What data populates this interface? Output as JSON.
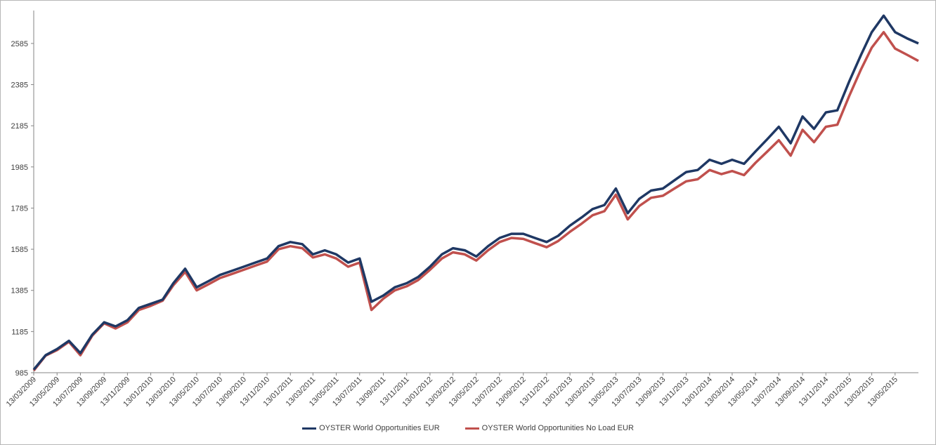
{
  "chart_data": {
    "type": "line",
    "title": "",
    "xlabel": "",
    "ylabel": "",
    "ylim": [
      985,
      2745
    ],
    "y_ticks": [
      985,
      1185,
      1385,
      1585,
      1785,
      1985,
      2185,
      2385,
      2585
    ],
    "x_ticks": [
      "13/03/2009",
      "13/05/2009",
      "13/07/2009",
      "13/09/2009",
      "13/11/2009",
      "13/01/2010",
      "13/03/2010",
      "13/05/2010",
      "13/07/2010",
      "13/09/2010",
      "13/11/2010",
      "13/01/2011",
      "13/03/2011",
      "13/05/2011",
      "13/07/2011",
      "13/09/2011",
      "13/11/2011",
      "13/01/2012",
      "13/03/2012",
      "13/05/2012",
      "13/07/2012",
      "13/09/2012",
      "13/11/2012",
      "13/01/2013",
      "13/03/2013",
      "13/05/2013",
      "13/07/2013",
      "13/09/2013",
      "13/11/2013",
      "13/01/2014",
      "13/03/2014",
      "13/05/2014",
      "13/07/2014",
      "13/09/2014",
      "13/11/2014",
      "13/01/2015",
      "13/03/2015",
      "13/05/2015"
    ],
    "legend_position": "bottom",
    "grid": false,
    "series": [
      {
        "name": "OYSTER World Opportunities EUR",
        "color": "#1f3864",
        "points": [
          [
            "13/03/2009",
            1000
          ],
          [
            "13/04/2009",
            1070
          ],
          [
            "13/05/2009",
            1100
          ],
          [
            "13/06/2009",
            1140
          ],
          [
            "13/07/2009",
            1080
          ],
          [
            "13/08/2009",
            1170
          ],
          [
            "13/09/2009",
            1230
          ],
          [
            "13/10/2009",
            1210
          ],
          [
            "13/11/2009",
            1240
          ],
          [
            "13/12/2009",
            1300
          ],
          [
            "13/01/2010",
            1320
          ],
          [
            "13/02/2010",
            1340
          ],
          [
            "13/03/2010",
            1420
          ],
          [
            "13/04/2010",
            1490
          ],
          [
            "13/05/2010",
            1400
          ],
          [
            "13/06/2010",
            1430
          ],
          [
            "13/07/2010",
            1460
          ],
          [
            "13/08/2010",
            1480
          ],
          [
            "13/09/2010",
            1500
          ],
          [
            "13/10/2010",
            1520
          ],
          [
            "13/11/2010",
            1540
          ],
          [
            "13/12/2010",
            1600
          ],
          [
            "13/01/2011",
            1620
          ],
          [
            "13/02/2011",
            1610
          ],
          [
            "13/03/2011",
            1560
          ],
          [
            "13/04/2011",
            1580
          ],
          [
            "13/05/2011",
            1560
          ],
          [
            "13/06/2011",
            1520
          ],
          [
            "13/07/2011",
            1540
          ],
          [
            "13/08/2011",
            1330
          ],
          [
            "13/09/2011",
            1360
          ],
          [
            "13/10/2011",
            1400
          ],
          [
            "13/11/2011",
            1420
          ],
          [
            "13/12/2011",
            1450
          ],
          [
            "13/01/2012",
            1500
          ],
          [
            "13/02/2012",
            1560
          ],
          [
            "13/03/2012",
            1590
          ],
          [
            "13/04/2012",
            1580
          ],
          [
            "13/05/2012",
            1550
          ],
          [
            "13/06/2012",
            1600
          ],
          [
            "13/07/2012",
            1640
          ],
          [
            "13/08/2012",
            1660
          ],
          [
            "13/09/2012",
            1660
          ],
          [
            "13/10/2012",
            1640
          ],
          [
            "13/11/2012",
            1620
          ],
          [
            "13/12/2012",
            1650
          ],
          [
            "13/01/2013",
            1700
          ],
          [
            "13/02/2013",
            1740
          ],
          [
            "13/03/2013",
            1780
          ],
          [
            "13/04/2013",
            1800
          ],
          [
            "13/05/2013",
            1880
          ],
          [
            "13/06/2013",
            1760
          ],
          [
            "13/07/2013",
            1830
          ],
          [
            "13/08/2013",
            1870
          ],
          [
            "13/09/2013",
            1880
          ],
          [
            "13/10/2013",
            1920
          ],
          [
            "13/11/2013",
            1960
          ],
          [
            "13/12/2013",
            1970
          ],
          [
            "13/01/2014",
            2020
          ],
          [
            "13/02/2014",
            2000
          ],
          [
            "13/03/2014",
            2020
          ],
          [
            "13/04/2014",
            2000
          ],
          [
            "13/05/2014",
            2060
          ],
          [
            "13/06/2014",
            2120
          ],
          [
            "13/07/2014",
            2180
          ],
          [
            "13/08/2014",
            2100
          ],
          [
            "13/09/2014",
            2230
          ],
          [
            "13/10/2014",
            2170
          ],
          [
            "13/11/2014",
            2250
          ],
          [
            "13/12/2014",
            2260
          ],
          [
            "13/01/2015",
            2400
          ],
          [
            "13/02/2015",
            2530
          ],
          [
            "13/03/2015",
            2640
          ],
          [
            "13/04/2015",
            2720
          ],
          [
            "13/05/2015",
            2640
          ],
          [
            "13/06/2015",
            2610
          ],
          [
            "13/07/2015",
            2585
          ]
        ]
      },
      {
        "name": "OYSTER World Opportunities No Load EUR",
        "color": "#c0504d",
        "points": [
          [
            "13/03/2009",
            995
          ],
          [
            "13/04/2009",
            1068
          ],
          [
            "13/05/2009",
            1095
          ],
          [
            "13/06/2009",
            1135
          ],
          [
            "13/07/2009",
            1070
          ],
          [
            "13/08/2009",
            1165
          ],
          [
            "13/09/2009",
            1225
          ],
          [
            "13/10/2009",
            1200
          ],
          [
            "13/11/2009",
            1230
          ],
          [
            "13/12/2009",
            1290
          ],
          [
            "13/01/2010",
            1310
          ],
          [
            "13/02/2010",
            1335
          ],
          [
            "13/03/2010",
            1410
          ],
          [
            "13/04/2010",
            1475
          ],
          [
            "13/05/2010",
            1385
          ],
          [
            "13/06/2010",
            1415
          ],
          [
            "13/07/2010",
            1445
          ],
          [
            "13/08/2010",
            1465
          ],
          [
            "13/09/2010",
            1485
          ],
          [
            "13/10/2010",
            1505
          ],
          [
            "13/11/2010",
            1525
          ],
          [
            "13/12/2010",
            1585
          ],
          [
            "13/01/2011",
            1600
          ],
          [
            "13/02/2011",
            1590
          ],
          [
            "13/03/2011",
            1545
          ],
          [
            "13/04/2011",
            1560
          ],
          [
            "13/05/2011",
            1540
          ],
          [
            "13/06/2011",
            1500
          ],
          [
            "13/07/2011",
            1520
          ],
          [
            "13/08/2011",
            1290
          ],
          [
            "13/09/2011",
            1345
          ],
          [
            "13/10/2011",
            1385
          ],
          [
            "13/11/2011",
            1405
          ],
          [
            "13/12/2011",
            1435
          ],
          [
            "13/01/2012",
            1485
          ],
          [
            "13/02/2012",
            1540
          ],
          [
            "13/03/2012",
            1570
          ],
          [
            "13/04/2012",
            1560
          ],
          [
            "13/05/2012",
            1530
          ],
          [
            "13/06/2012",
            1580
          ],
          [
            "13/07/2012",
            1620
          ],
          [
            "13/08/2012",
            1640
          ],
          [
            "13/09/2012",
            1635
          ],
          [
            "13/10/2012",
            1615
          ],
          [
            "13/11/2012",
            1595
          ],
          [
            "13/12/2012",
            1625
          ],
          [
            "13/01/2013",
            1670
          ],
          [
            "13/02/2013",
            1710
          ],
          [
            "13/03/2013",
            1750
          ],
          [
            "13/04/2013",
            1770
          ],
          [
            "13/05/2013",
            1850
          ],
          [
            "13/06/2013",
            1730
          ],
          [
            "13/07/2013",
            1795
          ],
          [
            "13/08/2013",
            1835
          ],
          [
            "13/09/2013",
            1845
          ],
          [
            "13/10/2013",
            1880
          ],
          [
            "13/11/2013",
            1915
          ],
          [
            "13/12/2013",
            1925
          ],
          [
            "13/01/2014",
            1970
          ],
          [
            "13/02/2014",
            1950
          ],
          [
            "13/03/2014",
            1965
          ],
          [
            "13/04/2014",
            1945
          ],
          [
            "13/05/2014",
            2005
          ],
          [
            "13/06/2014",
            2060
          ],
          [
            "13/07/2014",
            2115
          ],
          [
            "13/08/2014",
            2040
          ],
          [
            "13/09/2014",
            2165
          ],
          [
            "13/10/2014",
            2105
          ],
          [
            "13/11/2014",
            2180
          ],
          [
            "13/12/2014",
            2190
          ],
          [
            "13/01/2015",
            2330
          ],
          [
            "13/02/2015",
            2460
          ],
          [
            "13/03/2015",
            2565
          ],
          [
            "13/04/2015",
            2640
          ],
          [
            "13/05/2015",
            2560
          ],
          [
            "13/06/2015",
            2530
          ],
          [
            "13/07/2015",
            2500
          ]
        ]
      }
    ]
  }
}
